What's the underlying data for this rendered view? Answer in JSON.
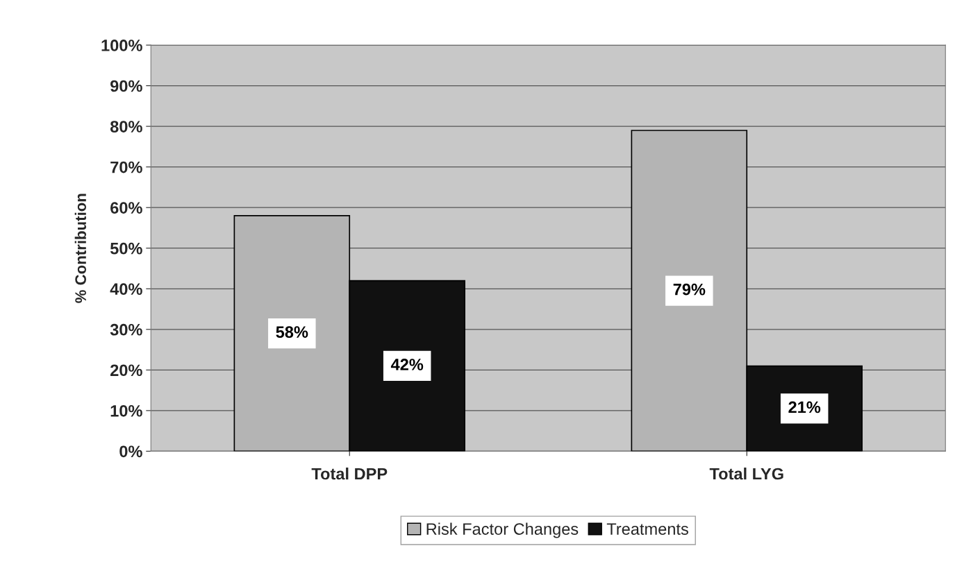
{
  "chart_data": {
    "type": "bar",
    "ylabel": "% Contribution",
    "categories": [
      "Total DPP",
      "Total LYG"
    ],
    "series": [
      {
        "name": "Risk Factor Changes",
        "color": "#b4b4b4",
        "values": [
          58,
          79
        ],
        "value_labels": [
          "58%",
          "79%"
        ]
      },
      {
        "name": "Treatments",
        "color": "#111111",
        "values": [
          42,
          21
        ],
        "value_labels": [
          "42%",
          "21%"
        ]
      }
    ],
    "ylim": [
      0,
      100
    ],
    "yticks": [
      {
        "value": 0,
        "label": "0%"
      },
      {
        "value": 10,
        "label": "10%"
      },
      {
        "value": 20,
        "label": "20%"
      },
      {
        "value": 30,
        "label": "30%"
      },
      {
        "value": 40,
        "label": "40%"
      },
      {
        "value": 50,
        "label": "50%"
      },
      {
        "value": 60,
        "label": "60%"
      },
      {
        "value": 70,
        "label": "70%"
      },
      {
        "value": 80,
        "label": "80%"
      },
      {
        "value": 90,
        "label": "90%"
      },
      {
        "value": 100,
        "label": "100%"
      }
    ],
    "grid": "y",
    "legend": "bottom"
  }
}
